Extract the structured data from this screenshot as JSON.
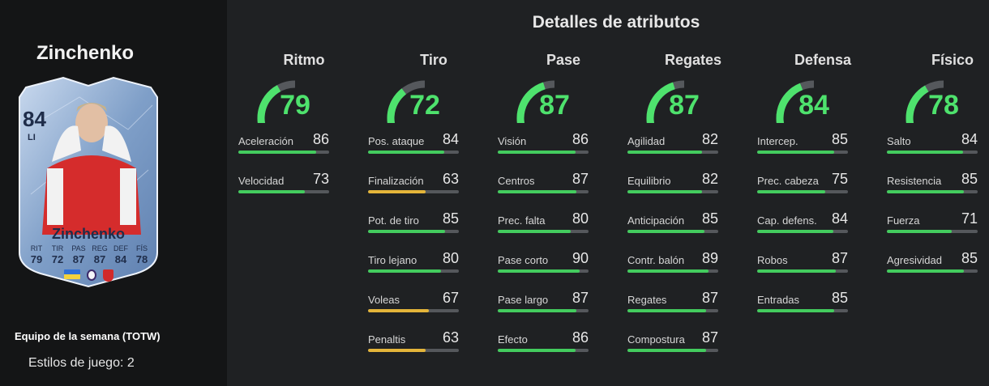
{
  "player": {
    "name": "Zinchenko",
    "edition": "Equipo de la semana (TOTW)",
    "playstyles": "Estilos de juego: 2"
  },
  "card": {
    "rating": "84",
    "position": "LI",
    "name": "Zinchenko",
    "stats": [
      {
        "label": "RIT",
        "value": "79"
      },
      {
        "label": "TIR",
        "value": "72"
      },
      {
        "label": "PAS",
        "value": "87"
      },
      {
        "label": "REG",
        "value": "87"
      },
      {
        "label": "DEF",
        "value": "84"
      },
      {
        "label": "FÍS",
        "value": "78"
      }
    ],
    "badges": [
      "flag-ukraine-icon",
      "premier-league-icon",
      "arsenal-crest-icon"
    ]
  },
  "section_title": "Detalles de atributos",
  "colors": {
    "accent_green": "#4ee26d",
    "bar_green": "#43cc5e",
    "bar_yellow": "#e4b53a",
    "bar_track": "#55585c"
  },
  "categories": [
    {
      "title": "Ritmo",
      "value": 79,
      "attributes": [
        {
          "name": "Aceleración",
          "value": 86
        },
        {
          "name": "Velocidad",
          "value": 73
        }
      ]
    },
    {
      "title": "Tiro",
      "value": 72,
      "attributes": [
        {
          "name": "Pos. ataque",
          "value": 84
        },
        {
          "name": "Finalización",
          "value": 63
        },
        {
          "name": "Pot. de tiro",
          "value": 85
        },
        {
          "name": "Tiro lejano",
          "value": 80
        },
        {
          "name": "Voleas",
          "value": 67
        },
        {
          "name": "Penaltis",
          "value": 63
        }
      ]
    },
    {
      "title": "Pase",
      "value": 87,
      "attributes": [
        {
          "name": "Visión",
          "value": 86
        },
        {
          "name": "Centros",
          "value": 87
        },
        {
          "name": "Prec. falta",
          "value": 80
        },
        {
          "name": "Pase corto",
          "value": 90
        },
        {
          "name": "Pase largo",
          "value": 87
        },
        {
          "name": "Efecto",
          "value": 86
        }
      ]
    },
    {
      "title": "Regates",
      "value": 87,
      "attributes": [
        {
          "name": "Agilidad",
          "value": 82
        },
        {
          "name": "Equilibrio",
          "value": 82
        },
        {
          "name": "Anticipación",
          "value": 85
        },
        {
          "name": "Contr. balón",
          "value": 89
        },
        {
          "name": "Regates",
          "value": 87
        },
        {
          "name": "Compostura",
          "value": 87
        }
      ]
    },
    {
      "title": "Defensa",
      "value": 84,
      "attributes": [
        {
          "name": "Intercep.",
          "value": 85
        },
        {
          "name": "Prec. cabeza",
          "value": 75
        },
        {
          "name": "Cap. defens.",
          "value": 84
        },
        {
          "name": "Robos",
          "value": 87
        },
        {
          "name": "Entradas",
          "value": 85
        }
      ]
    },
    {
      "title": "Físico",
      "value": 78,
      "attributes": [
        {
          "name": "Salto",
          "value": 84
        },
        {
          "name": "Resistencia",
          "value": 85
        },
        {
          "name": "Fuerza",
          "value": 71
        },
        {
          "name": "Agresividad",
          "value": 85
        }
      ]
    }
  ]
}
